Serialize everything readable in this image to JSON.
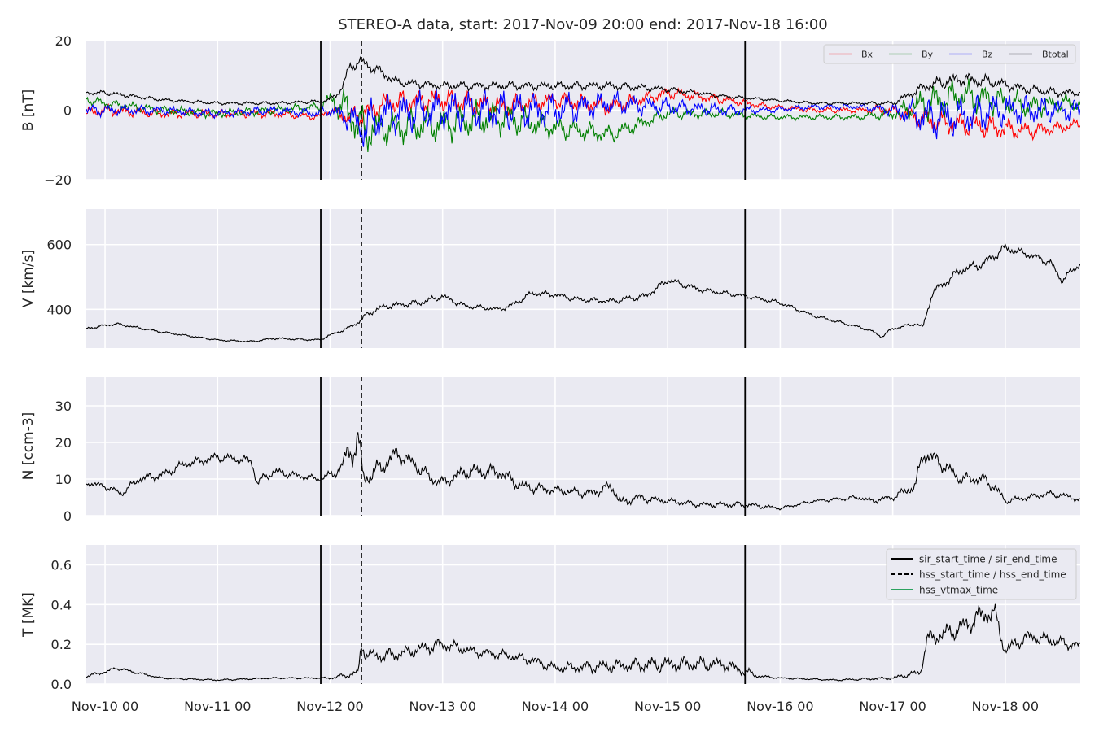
{
  "chart_data": {
    "type": "line",
    "title": "STEREO-A data, start: 2017-Nov-09 20:00  end: 2017-Nov-18 16:00",
    "x_unit": "days",
    "xlim": [
      -0.1667,
      8.6667
    ],
    "x_tick_values": [
      0,
      1,
      2,
      3,
      4,
      5,
      6,
      7,
      8
    ],
    "x_tick_labels": [
      "Nov-10 00",
      "Nov-11 00",
      "Nov-12 00",
      "Nov-13 00",
      "Nov-14 00",
      "Nov-15 00",
      "Nov-16 00",
      "Nov-17 00",
      "Nov-18 00"
    ],
    "event_lines": [
      {
        "time": "2017-Nov-11 22:00",
        "x": 1.917,
        "style": "solid",
        "legend": "sir_start_time / sir_end_time"
      },
      {
        "time": "2017-Nov-12 06:40",
        "x": 2.278,
        "style": "dashed",
        "legend": "hss_start_time / hss_end_time"
      },
      {
        "time": "2017-Nov-15 16:30",
        "x": 5.688,
        "style": "solid",
        "legend": "sir_start_time / sir_end_time"
      }
    ],
    "event_legend": [
      {
        "label": "sir_start_time / sir_end_time",
        "color": "#000000",
        "style": "solid"
      },
      {
        "label": "hss_start_time / hss_end_time",
        "color": "#000000",
        "style": "dashed"
      },
      {
        "label": "hss_vtmax_time",
        "color": "#2ca25f",
        "style": "solid"
      }
    ],
    "panels": [
      {
        "ylabel": "B [nT]",
        "ylim": [
          -20,
          20
        ],
        "yticks": [
          -20,
          0,
          20
        ],
        "ytick_labels": [
          "−20",
          "0",
          "20"
        ],
        "grid": true,
        "legend": "top-right",
        "series": [
          {
            "name": "Bx",
            "color": "#ff0000",
            "x": [
              -0.1667,
              0,
              0.5,
              1,
              1.5,
              1.9,
              2.0,
              2.15,
              2.3,
              2.5,
              3,
              3.5,
              4,
              4.5,
              5,
              5.5,
              5.9,
              6.3,
              6.7,
              7.0,
              7.3,
              7.6,
              7.9,
              8.2,
              8.5,
              8.6667
            ],
            "y": [
              -1,
              0,
              -1,
              -1,
              -1,
              -2,
              0,
              -2,
              -1,
              2,
              3,
              1,
              3,
              1,
              5,
              3,
              1,
              0,
              0,
              0,
              -3,
              -4,
              -5,
              -6,
              -5,
              -4
            ],
            "amp": [
              2,
              2,
              1.5,
              1.5,
              1.5,
              1,
              1.5,
              3,
              4,
              4,
              4,
              4,
              3,
              3,
              2,
              1.5,
              1,
              1,
              1,
              2,
              4,
              4,
              4,
              3,
              2,
              2
            ]
          },
          {
            "name": "By",
            "color": "#008000",
            "x": [
              -0.1667,
              0,
              0.5,
              1,
              1.5,
              1.9,
              2.0,
              2.15,
              2.3,
              2.5,
              3,
              3.5,
              4,
              4.5,
              5,
              5.5,
              5.9,
              6.3,
              6.7,
              7.0,
              7.3,
              7.6,
              7.9,
              8.2,
              8.5,
              8.6667
            ],
            "y": [
              3,
              2,
              0,
              -1,
              0,
              1,
              3,
              0,
              -6,
              -5,
              -4,
              -2,
              -5,
              -7,
              -1,
              -1,
              -2,
              -2,
              -2,
              -1,
              2,
              4,
              3,
              1,
              2,
              2
            ],
            "amp": [
              1.5,
              1.5,
              1.5,
              1.5,
              1.5,
              1.5,
              3,
              7,
              8,
              6,
              6,
              6,
              4,
              3,
              2,
              1.5,
              1,
              1,
              1,
              2,
              6,
              6,
              5,
              4,
              3,
              3
            ]
          },
          {
            "name": "Bz",
            "color": "#0000ff",
            "x": [
              -0.1667,
              0,
              0.5,
              1,
              1.5,
              1.9,
              2.0,
              2.15,
              2.3,
              2.5,
              3,
              3.5,
              4,
              4.5,
              5,
              5.5,
              5.9,
              6.3,
              6.7,
              7.0,
              7.3,
              7.6,
              7.9,
              8.2,
              8.5,
              8.6667
            ],
            "y": [
              0,
              0,
              0,
              -1,
              0,
              -1,
              0,
              -2,
              -5,
              -1,
              0,
              0,
              0,
              2,
              1,
              0,
              0,
              1,
              1,
              0,
              -2,
              -2,
              0,
              0,
              0,
              0
            ],
            "amp": [
              2,
              2,
              1.5,
              1.5,
              1.5,
              1.5,
              2,
              4,
              8,
              7,
              7,
              7,
              6,
              4,
              3,
              2,
              1,
              1,
              1,
              2,
              7,
              7,
              6,
              5,
              4,
              4
            ]
          },
          {
            "name": "Btotal",
            "color": "#000000",
            "x": [
              -0.1667,
              0,
              0.5,
              1,
              1.5,
              1.9,
              2.0,
              2.1,
              2.17,
              2.25,
              2.4,
              2.6,
              3,
              3.5,
              4,
              4.5,
              5,
              5.5,
              5.9,
              6.3,
              6.7,
              7.0,
              7.3,
              7.6,
              7.9,
              8.2,
              8.5,
              8.6667
            ],
            "y": [
              5,
              5,
              3,
              2,
              2,
              2.5,
              3,
              6,
              12,
              14,
              12,
              8,
              7,
              7,
              7,
              7,
              6,
              4,
              3,
              2,
              2,
              2,
              7,
              9,
              8,
              6,
              5,
              5
            ],
            "amp": [
              0.8,
              0.8,
              0.6,
              0.6,
              0.6,
              0.6,
              0.8,
              1.5,
              2,
              2,
              2,
              1.5,
              1.5,
              1.5,
              1.5,
              1.5,
              1,
              0.6,
              0.5,
              0.5,
              0.5,
              0.8,
              2,
              2.5,
              2,
              1.5,
              1.5,
              1
            ]
          }
        ]
      },
      {
        "ylabel": "V [km/s]",
        "ylim": [
          280,
          710
        ],
        "yticks": [
          400,
          600
        ],
        "ytick_labels": [
          "400",
          "600"
        ],
        "grid": true,
        "series": [
          {
            "name": "",
            "color": "#000000",
            "x": [
              -0.1667,
              0,
              0.1,
              0.5,
              1,
              1.3,
              1.5,
              1.9,
              2.0,
              2.15,
              2.25,
              2.35,
              2.5,
              2.8,
              3.0,
              3.2,
              3.5,
              3.6,
              3.8,
              4.0,
              4.2,
              4.5,
              4.6,
              4.8,
              5.0,
              5.3,
              5.7,
              6.0,
              6.3,
              6.7,
              6.8,
              6.9,
              7.0,
              7.2,
              7.27,
              7.35,
              7.6,
              7.8,
              8.0,
              8.2,
              8.4,
              8.5,
              8.6667
            ],
            "y": [
              340,
              350,
              355,
              330,
              305,
              300,
              310,
              305,
              320,
              340,
              360,
              390,
              410,
              420,
              440,
              410,
              400,
              410,
              450,
              445,
              430,
              425,
              430,
              440,
              490,
              460,
              440,
              420,
              380,
              345,
              335,
              315,
              340,
              355,
              345,
              450,
              520,
              540,
              590,
              570,
              545,
              490,
              540
            ],
            "amp": [
              5,
              5,
              5,
              4,
              3,
              4,
              4,
              4,
              5,
              6,
              8,
              12,
              12,
              12,
              12,
              10,
              8,
              10,
              12,
              10,
              10,
              10,
              12,
              12,
              12,
              10,
              8,
              8,
              6,
              5,
              5,
              5,
              6,
              6,
              8,
              15,
              18,
              18,
              18,
              14,
              14,
              14,
              12
            ]
          }
        ]
      },
      {
        "ylabel": "N [ccm-3]",
        "ylim": [
          0,
          38
        ],
        "yticks": [
          0,
          10,
          20,
          30
        ],
        "ytick_labels": [
          "0",
          "10",
          "20",
          "30"
        ],
        "grid": true,
        "series": [
          {
            "name": "",
            "color": "#000000",
            "x": [
              -0.1667,
              0,
              0.15,
              0.3,
              0.5,
              0.7,
              1,
              1.3,
              1.35,
              1.5,
              1.9,
              2.0,
              2.1,
              2.15,
              2.2,
              2.25,
              2.3,
              2.4,
              2.6,
              2.75,
              2.9,
              3.0,
              3.2,
              3.5,
              3.7,
              4.0,
              4.3,
              4.5,
              4.6,
              4.7,
              5.0,
              5.3,
              5.7,
              6.0,
              6.3,
              6.7,
              6.8,
              7.0,
              7.2,
              7.27,
              7.4,
              7.6,
              7.8,
              7.9,
              8.0,
              8.2,
              8.4,
              8.6,
              8.6667
            ],
            "y": [
              9,
              8,
              6,
              10,
              11,
              14,
              16,
              15,
              9,
              12,
              10,
              11,
              13,
              17,
              18,
              20,
              10,
              12,
              17,
              14,
              10,
              9,
              12,
              12,
              8,
              7,
              6,
              8,
              3,
              5,
              4,
              3,
              3,
              2,
              4,
              5,
              4,
              5,
              8,
              17,
              15,
              10,
              10,
              8,
              4,
              5,
              6,
              5,
              4
            ],
            "amp": [
              1,
              1,
              1,
              1.5,
              1.5,
              1.5,
              1.5,
              1.5,
              1.5,
              1.5,
              1,
              1.5,
              2,
              4,
              5,
              6,
              3,
              3,
              3,
              2.5,
              2,
              2,
              2.5,
              2.5,
              2,
              1.5,
              1.5,
              2,
              2,
              1.5,
              1,
              1,
              1,
              0.5,
              0.5,
              0.8,
              1,
              1,
              2,
              3,
              2.5,
              2,
              2,
              2,
              1,
              1,
              1,
              1,
              0.8
            ]
          }
        ]
      },
      {
        "ylabel": "T [MK]",
        "ylim": [
          0,
          0.7
        ],
        "yticks": [
          0.0,
          0.2,
          0.4,
          0.6
        ],
        "ytick_labels": [
          "0.0",
          "0.2",
          "0.4",
          "0.6"
        ],
        "grid": true,
        "legend": "top-right",
        "series": [
          {
            "name": "",
            "color": "#000000",
            "x": [
              -0.1667,
              0,
              0.1,
              0.5,
              1,
              1.5,
              1.9,
              2.0,
              2.2,
              2.25,
              2.28,
              2.32,
              2.4,
              2.6,
              3.0,
              3.3,
              3.5,
              3.8,
              4.0,
              4.5,
              5.0,
              5.5,
              5.7,
              5.8,
              6.0,
              6.5,
              7.0,
              7.25,
              7.3,
              7.6,
              7.8,
              7.9,
              8.0,
              8.2,
              8.4,
              8.6667
            ],
            "y": [
              0.04,
              0.06,
              0.08,
              0.03,
              0.02,
              0.03,
              0.03,
              0.03,
              0.05,
              0.06,
              0.2,
              0.15,
              0.14,
              0.15,
              0.2,
              0.16,
              0.15,
              0.12,
              0.08,
              0.09,
              0.1,
              0.1,
              0.06,
              0.04,
              0.03,
              0.02,
              0.03,
              0.06,
              0.22,
              0.28,
              0.35,
              0.36,
              0.17,
              0.24,
              0.22,
              0.19
            ],
            "amp": [
              0.01,
              0.01,
              0.01,
              0.005,
              0.005,
              0.005,
              0.005,
              0.008,
              0.02,
              0.02,
              0.05,
              0.04,
              0.04,
              0.04,
              0.04,
              0.03,
              0.03,
              0.03,
              0.03,
              0.04,
              0.05,
              0.04,
              0.03,
              0.01,
              0.005,
              0.005,
              0.01,
              0.02,
              0.05,
              0.06,
              0.07,
              0.07,
              0.04,
              0.04,
              0.04,
              0.03
            ]
          }
        ]
      }
    ]
  }
}
